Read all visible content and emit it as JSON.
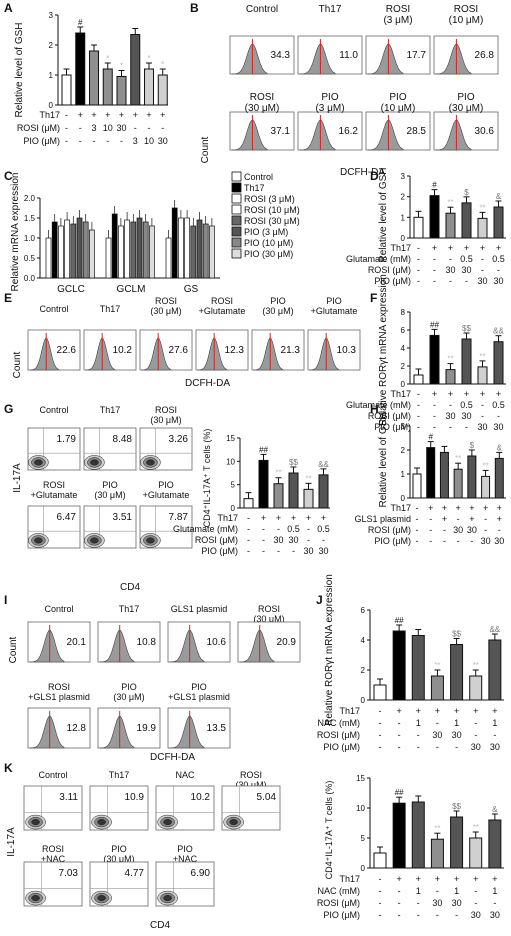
{
  "A": {
    "letter": "A",
    "ylabel": "Relative level of GSH",
    "y_ticks": [
      "0",
      "1",
      "2",
      "3"
    ],
    "values": [
      1.0,
      2.4,
      1.8,
      1.2,
      0.95,
      2.35,
      1.2,
      1.0
    ],
    "marks": [
      "",
      "#",
      "",
      "*",
      "*",
      "",
      "*",
      "*"
    ],
    "rows": [
      {
        "label": "Th17",
        "cells": [
          "-",
          "+",
          "+",
          "+",
          "+",
          "+",
          "+",
          "+"
        ]
      },
      {
        "label": "ROSI (μM)",
        "cells": [
          "-",
          "-",
          "3",
          "10",
          "30",
          "-",
          "-",
          "-"
        ]
      },
      {
        "label": "PIO (μM)",
        "cells": [
          "-",
          "-",
          "-",
          "-",
          "-",
          "3",
          "10",
          "30"
        ]
      }
    ]
  },
  "B": {
    "letter": "B",
    "ylabel": "Count",
    "xlabel": "DCFH-DA",
    "panels": [
      {
        "t": "Control",
        "v": "34.3"
      },
      {
        "t": "Th17",
        "v": "11.0"
      },
      {
        "t": "ROSI\n(3 μM)",
        "v": "17.7"
      },
      {
        "t": "ROSI\n(10 μM)",
        "v": "26.8"
      },
      {
        "t": "ROSI\n(30 μM)",
        "v": "37.1"
      },
      {
        "t": "PIO\n(3 μM)",
        "v": "16.2"
      },
      {
        "t": "PIO\n(10 μM)",
        "v": "28.5"
      },
      {
        "t": "PIO\n(30 μM)",
        "v": "30.6"
      }
    ]
  },
  "C": {
    "letter": "C",
    "ylabel": "Relative mRNA expression",
    "y_ticks": [
      "0.0",
      "0.5",
      "1.0",
      "1.5",
      "2.0"
    ],
    "groups": [
      "GCLC",
      "GCLM",
      "GS"
    ],
    "legend": [
      "Control",
      "Th17",
      "ROSI (3 μM)",
      "ROSI (10 μM)",
      "ROSI (30 μM)",
      "PIO (3 μM)",
      "PIO (10 μM)",
      "PIO (30 μM)"
    ],
    "values": [
      [
        1.0,
        1.4,
        1.3,
        1.45,
        1.35,
        1.5,
        1.4,
        1.2
      ],
      [
        1.0,
        1.6,
        1.3,
        1.45,
        1.4,
        1.5,
        1.4,
        1.3
      ],
      [
        1.0,
        1.75,
        1.5,
        1.5,
        1.3,
        1.45,
        1.35,
        1.3
      ]
    ]
  },
  "D": {
    "letter": "D",
    "ylabel": "Relative level of GSH",
    "y_ticks": [
      "0",
      "1",
      "2",
      "3"
    ],
    "values": [
      1.0,
      2.05,
      1.2,
      1.7,
      0.95,
      1.5
    ],
    "marks": [
      "",
      "#",
      "**",
      "$",
      "**",
      "&"
    ],
    "rows": [
      {
        "label": "Th17",
        "cells": [
          "-",
          "+",
          "+",
          "+",
          "+",
          "+"
        ]
      },
      {
        "label": "Glutamate (mM)",
        "cells": [
          "-",
          "-",
          "-",
          "0.5",
          "-",
          "0.5"
        ]
      },
      {
        "label": "ROSI (μM)",
        "cells": [
          "-",
          "-",
          "30",
          "30",
          "-",
          "-"
        ]
      },
      {
        "label": "PIO (μM)",
        "cells": [
          "-",
          "-",
          "-",
          "-",
          "30",
          "30"
        ]
      }
    ]
  },
  "E": {
    "letter": "E",
    "ylabel": "Count",
    "xlabel": "DCFH-DA",
    "panels": [
      {
        "t": "Control",
        "v": "22.6"
      },
      {
        "t": "Th17",
        "v": "10.2"
      },
      {
        "t": "ROSI\n(30 μM)",
        "v": "27.6"
      },
      {
        "t": "ROSI\n+Glutamate",
        "v": "12.3"
      },
      {
        "t": "PIO\n(30 μM)",
        "v": "21.3"
      },
      {
        "t": "PIO\n+Glutamate",
        "v": "10.3"
      }
    ]
  },
  "F": {
    "letter": "F",
    "ylabel": "Relative RORγt mRNA expression",
    "y_ticks": [
      "0",
      "2",
      "4",
      "6",
      "8"
    ],
    "values": [
      1.0,
      5.4,
      1.6,
      5.0,
      1.9,
      4.7
    ],
    "marks": [
      "",
      "##",
      "**",
      "$$",
      "**",
      "&&"
    ],
    "rows": [
      {
        "label": "Th17",
        "cells": [
          "-",
          "+",
          "+",
          "+",
          "+",
          "+"
        ]
      },
      {
        "label": "Glutamate (mM)",
        "cells": [
          "-",
          "-",
          "-",
          "0.5",
          "-",
          "0.5"
        ]
      },
      {
        "label": "ROSI (μM)",
        "cells": [
          "-",
          "-",
          "30",
          "30",
          "-",
          "-"
        ]
      },
      {
        "label": "PIO (μM)",
        "cells": [
          "-",
          "-",
          "-",
          "-",
          "30",
          "30"
        ]
      }
    ]
  },
  "G": {
    "letter": "G",
    "ylabel": "IL-17A",
    "xlabel": "CD4",
    "panels": [
      {
        "t": "Control",
        "v": "1.79"
      },
      {
        "t": "Th17",
        "v": "8.48"
      },
      {
        "t": "ROSI\n(30 μM)",
        "v": "3.26"
      },
      {
        "t": "ROSI\n+Glutamate",
        "v": "6.47"
      },
      {
        "t": "PIO\n(30 μM)",
        "v": "3.51"
      },
      {
        "t": "PIO\n+Glutamate",
        "v": "7.87"
      }
    ],
    "bar": {
      "ylabel": "CD4⁺IL-17A⁺ T cells (%)",
      "y_ticks": [
        "0",
        "5",
        "10",
        "15"
      ],
      "values": [
        2.0,
        10.2,
        5.2,
        7.5,
        4.0,
        7.1
      ],
      "marks": [
        "",
        "##",
        "**",
        "$$",
        "**",
        "&&"
      ],
      "rows": [
        {
          "label": "Th17",
          "cells": [
            "-",
            "+",
            "+",
            "+",
            "+",
            "+"
          ]
        },
        {
          "label": "Glutamate (mM)",
          "cells": [
            "-",
            "-",
            "-",
            "0.5",
            "-",
            "0.5"
          ]
        },
        {
          "label": "ROSI (μM)",
          "cells": [
            "-",
            "-",
            "30",
            "30",
            "-",
            "-"
          ]
        },
        {
          "label": "PIO (μM)",
          "cells": [
            "-",
            "-",
            "-",
            "-",
            "30",
            "30"
          ]
        }
      ]
    }
  },
  "H": {
    "letter": "H",
    "ylabel": "Relative level of GSH",
    "y_ticks": [
      "0",
      "1",
      "2",
      "3"
    ],
    "values": [
      1.0,
      2.1,
      1.9,
      1.2,
      1.75,
      0.9,
      1.65
    ],
    "marks": [
      "",
      "#",
      "",
      "**",
      "$",
      "**",
      "&"
    ],
    "rows": [
      {
        "label": "Th17",
        "cells": [
          "-",
          "+",
          "+",
          "+",
          "+",
          "+",
          "+"
        ]
      },
      {
        "label": "GLS1 plasmid",
        "cells": [
          "-",
          "-",
          "+",
          "-",
          "+",
          "-",
          "+"
        ]
      },
      {
        "label": "ROSI (μM)",
        "cells": [
          "-",
          "-",
          "-",
          "30",
          "30",
          "-",
          "-"
        ]
      },
      {
        "label": "PIO (μM)",
        "cells": [
          "-",
          "-",
          "-",
          "-",
          "-",
          "30",
          "30"
        ]
      }
    ]
  },
  "I": {
    "letter": "I",
    "ylabel": "Count",
    "xlabel": "DCFH-DA",
    "panels": [
      {
        "t": "Control",
        "v": "20.1"
      },
      {
        "t": "Th17",
        "v": "10.8"
      },
      {
        "t": "GLS1 plasmid",
        "v": "10.6"
      },
      {
        "t": "ROSI\n(30 μM)",
        "v": "20.9"
      },
      {
        "t": "ROSI\n+GLS1 plasmid",
        "v": "12.8"
      },
      {
        "t": "PIO\n(30 μM)",
        "v": "19.9"
      },
      {
        "t": "PIO\n+GLS1 plasmid",
        "v": "13.5"
      }
    ]
  },
  "J": {
    "letter": "J",
    "ylabel": "Relative RORγt mRNA expression",
    "y_ticks": [
      "0",
      "2",
      "4",
      "6"
    ],
    "values": [
      1.0,
      4.6,
      4.3,
      1.6,
      3.7,
      1.6,
      4.0
    ],
    "marks": [
      "",
      "##",
      "",
      "**",
      "$$",
      "**",
      "&&"
    ],
    "rows": [
      {
        "label": "Th17",
        "cells": [
          "-",
          "+",
          "+",
          "+",
          "+",
          "+",
          "+"
        ]
      },
      {
        "label": "NAC (mM)",
        "cells": [
          "-",
          "-",
          "1",
          "-",
          "1",
          "-",
          "1"
        ]
      },
      {
        "label": "ROSI (μM)",
        "cells": [
          "-",
          "-",
          "-",
          "30",
          "30",
          "-",
          "-"
        ]
      },
      {
        "label": "PIO (μM)",
        "cells": [
          "-",
          "-",
          "-",
          "-",
          "-",
          "30",
          "30"
        ]
      }
    ]
  },
  "K": {
    "letter": "K",
    "ylabel": "IL-17A",
    "xlabel": "CD4",
    "panels": [
      {
        "t": "Control",
        "v": "3.11"
      },
      {
        "t": "Th17",
        "v": "10.9"
      },
      {
        "t": "NAC",
        "v": "10.2"
      },
      {
        "t": "ROSI\n(30 μM)",
        "v": "5.04"
      },
      {
        "t": "ROSI\n+NAC",
        "v": "7.03"
      },
      {
        "t": "PIO\n(30 μM)",
        "v": "4.77"
      },
      {
        "t": "PIO\n+NAC",
        "v": "6.90"
      }
    ],
    "bar": {
      "ylabel": "CD4⁺IL-17A⁺ T cells (%)",
      "y_ticks": [
        "0",
        "5",
        "10",
        "15"
      ],
      "values": [
        2.5,
        10.8,
        11.0,
        4.8,
        8.5,
        5.0,
        8.0
      ],
      "marks": [
        "",
        "##",
        "",
        "**",
        "$$",
        "**",
        "&"
      ],
      "rows": [
        {
          "label": "Th17",
          "cells": [
            "-",
            "+",
            "+",
            "+",
            "+",
            "+",
            "+"
          ]
        },
        {
          "label": "NAC (mM)",
          "cells": [
            "-",
            "-",
            "1",
            "-",
            "1",
            "-",
            "1"
          ]
        },
        {
          "label": "ROSI (μM)",
          "cells": [
            "-",
            "-",
            "-",
            "30",
            "30",
            "-",
            "-"
          ]
        },
        {
          "label": "PIO (μM)",
          "cells": [
            "-",
            "-",
            "-",
            "-",
            "-",
            "30",
            "30"
          ]
        }
      ]
    }
  },
  "colors": {
    "control": "#ffffff",
    "th17": "#000000",
    "rosi": "#8f8f8f",
    "pio": "#d0d0d0",
    "gluc": "#555555",
    "histfill": "#9a9a9a",
    "redline": "#d62020"
  }
}
